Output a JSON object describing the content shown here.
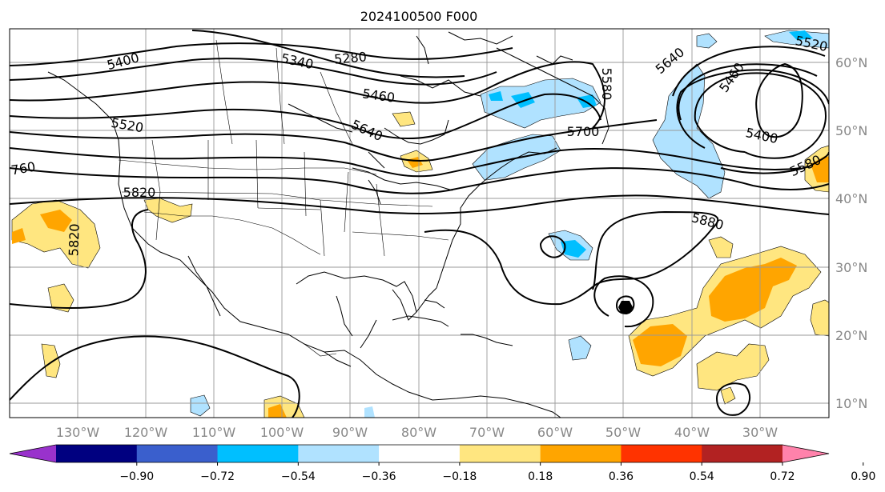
{
  "title": "2024100500 F000",
  "longitude_labels": [
    "130°W",
    "120°W",
    "110°W",
    "100°W",
    "90°W",
    "80°W",
    "70°W",
    "60°W",
    "50°W",
    "40°W",
    "30°W"
  ],
  "latitude_labels": [
    "60°N",
    "50°N",
    "40°N",
    "30°N",
    "20°N",
    "10°N"
  ],
  "contour_labels": [
    "5400",
    "5340",
    "5280",
    "5460",
    "5580",
    "5640",
    "5460",
    "5520",
    "5520",
    "5640",
    "5700",
    "5400",
    "5580",
    "760",
    "5820",
    "5820",
    "5880"
  ],
  "colorbar": {
    "tick_labels": [
      "−0.90",
      "−0.72",
      "−0.54",
      "−0.36",
      "−0.18",
      "0.18",
      "0.36",
      "0.54",
      "0.72",
      "0.90"
    ],
    "colors": [
      "#9932cc",
      "#000080",
      "#3a5fcd",
      "#00bfff",
      "#b0e2ff",
      "#ffffff",
      "#ffe680",
      "#ffa500",
      "#ff3300",
      "#b22222",
      "#ff82ab"
    ]
  }
}
